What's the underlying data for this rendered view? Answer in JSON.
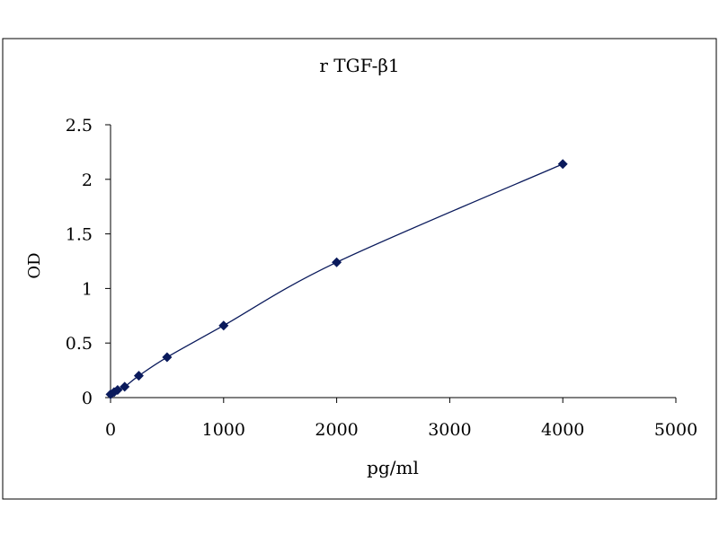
{
  "chart_data": {
    "type": "scatter",
    "title": "r TGF-β1",
    "xlabel": "pg/ml",
    "ylabel": "OD",
    "xlim": [
      0,
      5000
    ],
    "ylim": [
      0,
      2.5
    ],
    "x_ticks": [
      0,
      1000,
      2000,
      3000,
      4000,
      5000
    ],
    "y_ticks": [
      0,
      0.5,
      1,
      1.5,
      2,
      2.5
    ],
    "x_tick_labels": [
      "0",
      "1000",
      "2000",
      "3000",
      "4000",
      "5000"
    ],
    "y_tick_labels": [
      "0",
      "0.5",
      "1",
      "1.5",
      "2",
      "2.5"
    ],
    "grid": false,
    "legend": "none",
    "trendline": "smooth",
    "series": [
      {
        "color": "#0a1a5c",
        "marker": "diamond",
        "points": [
          {
            "x": 0,
            "y": 0.03
          },
          {
            "x": 31.25,
            "y": 0.05
          },
          {
            "x": 62.5,
            "y": 0.07
          },
          {
            "x": 125,
            "y": 0.1
          },
          {
            "x": 250,
            "y": 0.2
          },
          {
            "x": 500,
            "y": 0.37
          },
          {
            "x": 1000,
            "y": 0.66
          },
          {
            "x": 2000,
            "y": 1.24
          },
          {
            "x": 4000,
            "y": 2.14
          }
        ]
      }
    ]
  }
}
